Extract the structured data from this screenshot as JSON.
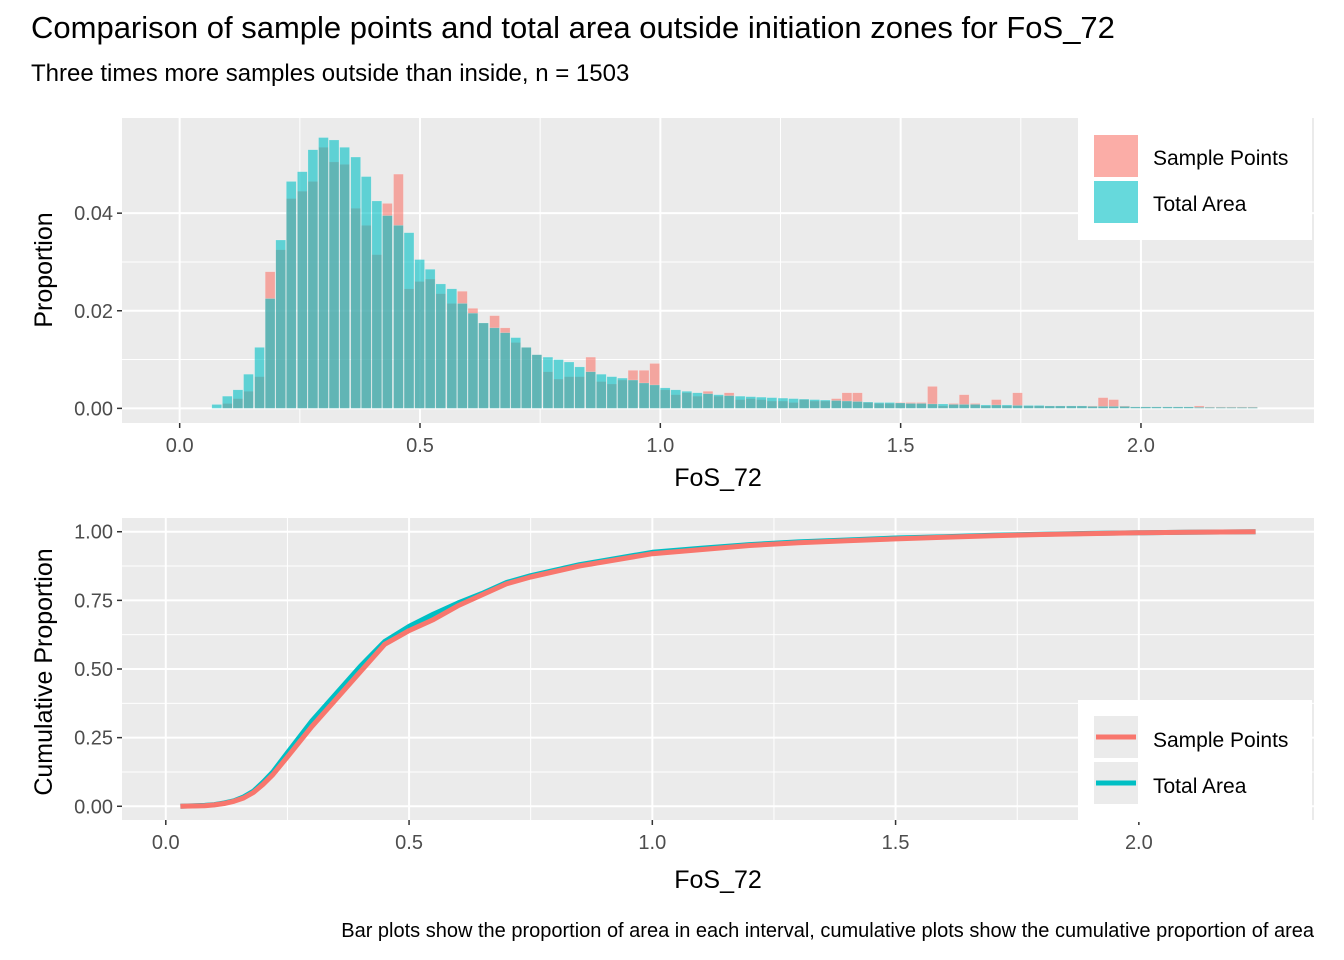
{
  "title": "Comparison of sample points and total area outside initiation zones for FoS_72",
  "subtitle": "Three times more samples outside than inside, n = 1503",
  "caption": "Bar plots show the proportion of area in each interval, cumulative plots show the cumulative proportion of area",
  "colors": {
    "sample_points": "#F8766D",
    "total_area": "#00BFC4",
    "panel_bg": "#EBEBEB",
    "grid": "#FFFFFF"
  },
  "chart_data": [
    {
      "type": "bar",
      "xlabel": "FoS_72",
      "ylabel": "Proportion",
      "xlim": [
        -0.12,
        2.36
      ],
      "ylim": [
        -0.003,
        0.0595
      ],
      "xticks": [
        0.0,
        0.5,
        1.0,
        1.5,
        2.0
      ],
      "xtick_labels": [
        "0.0",
        "0.5",
        "1.0",
        "1.5",
        "2.0"
      ],
      "yticks": [
        0.0,
        0.02,
        0.04
      ],
      "ytick_labels": [
        "0.00",
        "0.02",
        "0.04"
      ],
      "legend_position": "top-right",
      "bin_width": 0.0222,
      "x": [
        0.078,
        0.1,
        0.122,
        0.144,
        0.167,
        0.189,
        0.211,
        0.233,
        0.256,
        0.278,
        0.3,
        0.322,
        0.344,
        0.367,
        0.389,
        0.411,
        0.433,
        0.456,
        0.478,
        0.5,
        0.522,
        0.544,
        0.567,
        0.589,
        0.611,
        0.633,
        0.656,
        0.678,
        0.7,
        0.722,
        0.744,
        0.767,
        0.789,
        0.811,
        0.833,
        0.856,
        0.878,
        0.9,
        0.922,
        0.944,
        0.967,
        0.989,
        1.011,
        1.033,
        1.056,
        1.078,
        1.1,
        1.122,
        1.144,
        1.167,
        1.189,
        1.211,
        1.233,
        1.256,
        1.278,
        1.3,
        1.322,
        1.344,
        1.367,
        1.389,
        1.411,
        1.433,
        1.456,
        1.478,
        1.5,
        1.522,
        1.544,
        1.567,
        1.589,
        1.611,
        1.633,
        1.656,
        1.678,
        1.7,
        1.722,
        1.744,
        1.767,
        1.789,
        1.811,
        1.833,
        1.856,
        1.878,
        1.9,
        1.922,
        1.944,
        1.967,
        1.989,
        2.011,
        2.033,
        2.056,
        2.078,
        2.1,
        2.122,
        2.144,
        2.167,
        2.189,
        2.211,
        2.233
      ],
      "series": [
        {
          "name": "Sample Points",
          "values": [
            0,
            0.001,
            0.002,
            0.0035,
            0.0065,
            0.028,
            0.0325,
            0.043,
            0.0445,
            0.0465,
            0.0535,
            0.0505,
            0.05,
            0.041,
            0.0375,
            0.0315,
            0.042,
            0.048,
            0.0245,
            0.026,
            0.0265,
            0.0235,
            0.0215,
            0.024,
            0.0205,
            0.0175,
            0.019,
            0.0165,
            0.0135,
            0.0125,
            0.011,
            0.0075,
            0.006,
            0.0065,
            0.0065,
            0.0105,
            0.0055,
            0.005,
            0.0058,
            0.0078,
            0.0078,
            0.0092,
            0.0038,
            0.0028,
            0.0032,
            0.0025,
            0.0035,
            0.0025,
            0.0032,
            0.0018,
            0.002,
            0.0018,
            0.0015,
            0.0015,
            0.0012,
            0.0018,
            0.0015,
            0.0015,
            0.002,
            0.0032,
            0.0032,
            0.0012,
            0.001,
            0.001,
            0.0012,
            0.0012,
            0.0012,
            0.0045,
            0.0005,
            0.001,
            0.0028,
            0.001,
            0.0005,
            0.0018,
            0.0005,
            0.0032,
            0.0005,
            0.0005,
            0.0005,
            0.0005,
            0.0005,
            0.0005,
            0.0005,
            0.0022,
            0.0018,
            0.0005,
            0.0003,
            0.0003,
            0.0003,
            0.0003,
            0.0003,
            0.0003,
            0.0005,
            0.0003,
            0.0003,
            0.0003,
            0.0003,
            0.0003
          ]
        },
        {
          "name": "Total Area",
          "values": [
            0.0008,
            0.0025,
            0.0038,
            0.007,
            0.0125,
            0.0225,
            0.0345,
            0.0465,
            0.0485,
            0.053,
            0.0555,
            0.055,
            0.0535,
            0.0515,
            0.0475,
            0.0425,
            0.0395,
            0.0375,
            0.036,
            0.0305,
            0.0285,
            0.0255,
            0.0245,
            0.0215,
            0.0195,
            0.0175,
            0.0165,
            0.0155,
            0.0145,
            0.0125,
            0.011,
            0.0105,
            0.01,
            0.0095,
            0.0085,
            0.0075,
            0.007,
            0.0065,
            0.0062,
            0.0058,
            0.0052,
            0.0048,
            0.0042,
            0.0038,
            0.0035,
            0.0032,
            0.003,
            0.0028,
            0.0026,
            0.0025,
            0.0024,
            0.0023,
            0.0022,
            0.0021,
            0.002,
            0.0019,
            0.0018,
            0.0017,
            0.0016,
            0.0015,
            0.0014,
            0.0013,
            0.0012,
            0.0012,
            0.0011,
            0.001,
            0.001,
            0.0009,
            0.0009,
            0.0008,
            0.0008,
            0.0008,
            0.0007,
            0.0007,
            0.0007,
            0.0006,
            0.0006,
            0.0006,
            0.0005,
            0.0005,
            0.0005,
            0.0005,
            0.0004,
            0.0004,
            0.0004,
            0.0004,
            0.0003,
            0.0003,
            0.0003,
            0.0003,
            0.0003,
            0.0003,
            0.0002,
            0.0002,
            0.0002,
            0.0002,
            0.0002,
            0.0002
          ]
        }
      ]
    },
    {
      "type": "line",
      "xlabel": "FoS_72",
      "ylabel": "Cumulative Proportion",
      "xlim": [
        -0.09,
        2.36
      ],
      "ylim": [
        -0.05,
        1.05
      ],
      "xticks": [
        0.0,
        0.5,
        1.0,
        1.5,
        2.0
      ],
      "xtick_labels": [
        "0.0",
        "0.5",
        "1.0",
        "1.5",
        "2.0"
      ],
      "yticks": [
        0.0,
        0.25,
        0.5,
        0.75,
        1.0
      ],
      "ytick_labels": [
        "0.00",
        "0.25",
        "0.50",
        "0.75",
        "1.00"
      ],
      "legend_position": "bottom-right",
      "series": [
        {
          "name": "Sample Points",
          "x": [
            0.03,
            0.08,
            0.1,
            0.12,
            0.14,
            0.16,
            0.18,
            0.2,
            0.22,
            0.25,
            0.3,
            0.35,
            0.4,
            0.45,
            0.5,
            0.55,
            0.6,
            0.65,
            0.7,
            0.75,
            0.8,
            0.85,
            0.9,
            1.0,
            1.1,
            1.2,
            1.3,
            1.4,
            1.5,
            1.6,
            1.7,
            1.8,
            1.9,
            2.0,
            2.1,
            2.24
          ],
          "y": [
            0.0,
            0.002,
            0.005,
            0.01,
            0.018,
            0.03,
            0.05,
            0.08,
            0.115,
            0.18,
            0.29,
            0.39,
            0.49,
            0.59,
            0.64,
            0.68,
            0.73,
            0.77,
            0.81,
            0.835,
            0.855,
            0.875,
            0.89,
            0.92,
            0.935,
            0.95,
            0.96,
            0.967,
            0.974,
            0.98,
            0.985,
            0.99,
            0.993,
            0.996,
            0.998,
            1.0
          ]
        },
        {
          "name": "Total Area",
          "x": [
            0.03,
            0.08,
            0.1,
            0.12,
            0.14,
            0.16,
            0.18,
            0.2,
            0.22,
            0.25,
            0.3,
            0.35,
            0.4,
            0.45,
            0.5,
            0.55,
            0.6,
            0.65,
            0.7,
            0.75,
            0.8,
            0.85,
            0.9,
            1.0,
            1.1,
            1.2,
            1.3,
            1.4,
            1.5,
            1.6,
            1.7,
            1.8,
            1.9,
            2.0,
            2.1,
            2.24
          ],
          "y": [
            0.0,
            0.003,
            0.006,
            0.012,
            0.02,
            0.034,
            0.055,
            0.088,
            0.125,
            0.195,
            0.31,
            0.41,
            0.51,
            0.6,
            0.655,
            0.7,
            0.74,
            0.775,
            0.815,
            0.84,
            0.86,
            0.88,
            0.895,
            0.925,
            0.94,
            0.953,
            0.963,
            0.97,
            0.977,
            0.982,
            0.987,
            0.991,
            0.994,
            0.996,
            0.998,
            1.0
          ]
        }
      ]
    }
  ]
}
